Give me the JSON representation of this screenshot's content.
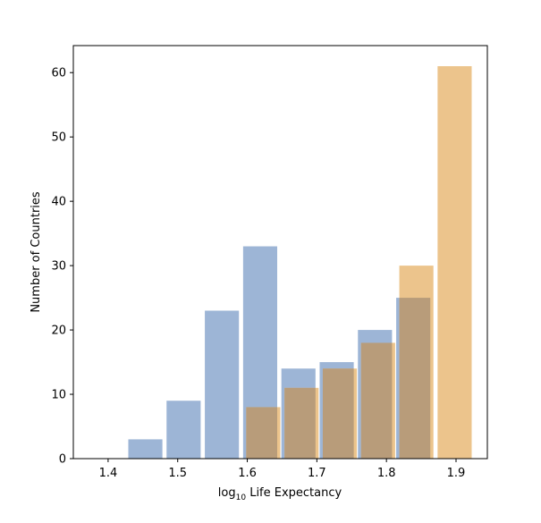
{
  "chart_data": {
    "type": "bar",
    "xlabel": {
      "prefix": "log",
      "subscript": "10",
      "suffix": " Life Expectancy"
    },
    "ylabel": "Number of Countries",
    "xlim": [
      1.35,
      1.945
    ],
    "ylim": [
      0,
      64.2
    ],
    "x_ticks": [
      1.4,
      1.5,
      1.6,
      1.7,
      1.8,
      1.9
    ],
    "y_ticks": [
      0,
      10,
      20,
      30,
      40,
      50,
      60
    ],
    "bar_width": 0.049,
    "series": [
      {
        "color": "#9db5d6",
        "bars": [
          {
            "x0": 1.429,
            "value": 3
          },
          {
            "x0": 1.484,
            "value": 9
          },
          {
            "x0": 1.539,
            "value": 23
          },
          {
            "x0": 1.594,
            "value": 33
          },
          {
            "x0": 1.649,
            "value": 14
          },
          {
            "x0": 1.704,
            "value": 15
          },
          {
            "x0": 1.759,
            "value": 20
          },
          {
            "x0": 1.814,
            "value": 25
          }
        ]
      },
      {
        "color": "#ecc48c",
        "bars": [
          {
            "x0": 1.5985,
            "value": 8
          },
          {
            "x0": 1.6535,
            "value": 11
          },
          {
            "x0": 1.7085,
            "value": 14
          },
          {
            "x0": 1.7635,
            "value": 18
          },
          {
            "x0": 1.8185,
            "value": 30
          },
          {
            "x0": 1.8735,
            "value": 61
          }
        ]
      }
    ],
    "overlap_color": "#b89c7a",
    "grid": false
  }
}
